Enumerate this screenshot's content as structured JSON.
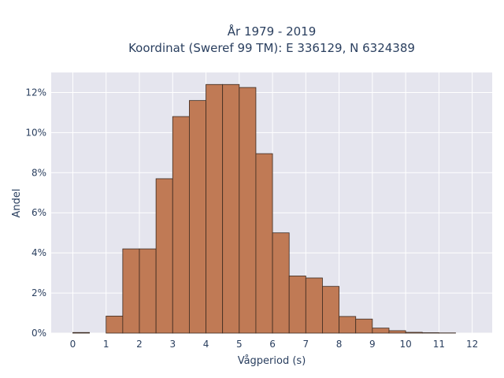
{
  "chart_data": {
    "type": "bar",
    "title_lines": [
      "År 1979 - 2019",
      "Koordinat (Sweref 99 TM): E 336129, N 6324389"
    ],
    "xlabel": "Vågperiod (s)",
    "ylabel": "Andel",
    "bin_width": 0.5,
    "bins": [
      {
        "x0": 0.0,
        "value": 0.0003
      },
      {
        "x0": 0.5,
        "value": 0.0
      },
      {
        "x0": 1.0,
        "value": 0.0085
      },
      {
        "x0": 1.5,
        "value": 0.042
      },
      {
        "x0": 2.0,
        "value": 0.042
      },
      {
        "x0": 2.5,
        "value": 0.077
      },
      {
        "x0": 3.0,
        "value": 0.108
      },
      {
        "x0": 3.5,
        "value": 0.116
      },
      {
        "x0": 4.0,
        "value": 0.124
      },
      {
        "x0": 4.5,
        "value": 0.124
      },
      {
        "x0": 5.0,
        "value": 0.1225
      },
      {
        "x0": 5.5,
        "value": 0.0895
      },
      {
        "x0": 6.0,
        "value": 0.05
      },
      {
        "x0": 6.5,
        "value": 0.0285
      },
      {
        "x0": 7.0,
        "value": 0.0275
      },
      {
        "x0": 7.5,
        "value": 0.0233
      },
      {
        "x0": 8.0,
        "value": 0.0083
      },
      {
        "x0": 8.5,
        "value": 0.007
      },
      {
        "x0": 9.0,
        "value": 0.0025
      },
      {
        "x0": 9.5,
        "value": 0.0012
      },
      {
        "x0": 10.0,
        "value": 0.0004
      },
      {
        "x0": 10.5,
        "value": 0.0002
      },
      {
        "x0": 11.0,
        "value": 0.0001
      }
    ],
    "xlim": [
      -0.65,
      12.6
    ],
    "ylim": [
      0,
      0.13
    ],
    "x_ticks": [
      0,
      1,
      2,
      3,
      4,
      5,
      6,
      7,
      8,
      9,
      10,
      11,
      12
    ],
    "x_tick_labels": [
      "0",
      "1",
      "2",
      "3",
      "4",
      "5",
      "6",
      "7",
      "8",
      "9",
      "10",
      "11",
      "12"
    ],
    "y_ticks": [
      0,
      0.02,
      0.04,
      0.06,
      0.08,
      0.1,
      0.12
    ],
    "y_tick_labels": [
      "0%",
      "2%",
      "4%",
      "6%",
      "8%",
      "10%",
      "12%"
    ],
    "grid": true,
    "colors": {
      "bar_fill": "#c07a55",
      "bar_stroke": "#3b2a20",
      "plot_bg": "#e5e5ee",
      "grid": "#ffffff"
    }
  }
}
